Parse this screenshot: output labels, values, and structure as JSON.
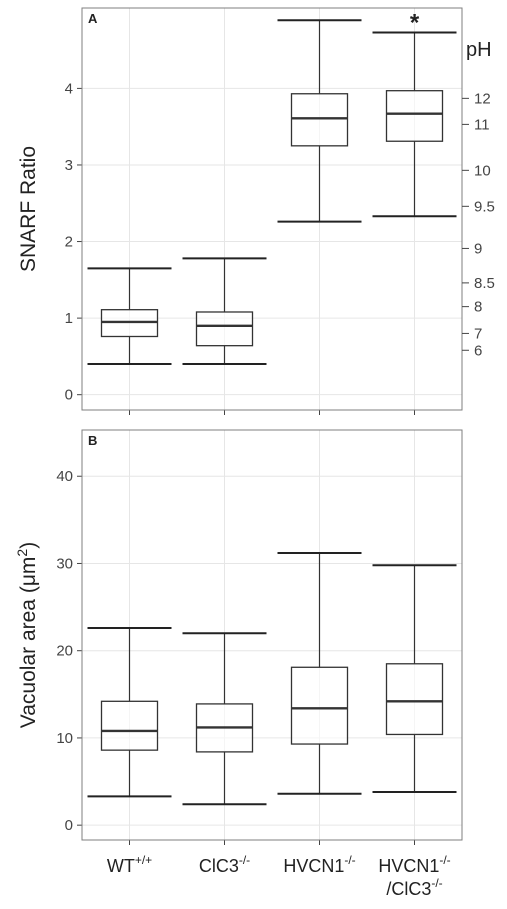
{
  "chart_data": [
    {
      "type": "box",
      "panel_label": "A",
      "ylabel": "SNARF Ratio",
      "ylim": [
        -0.2,
        5.05
      ],
      "yticks": [
        0,
        1,
        2,
        3,
        4
      ],
      "grid": true,
      "boxes": [
        {
          "low": 0.4,
          "q1": 0.76,
          "median": 0.95,
          "q3": 1.11,
          "high": 1.65
        },
        {
          "low": 0.4,
          "q1": 0.64,
          "median": 0.9,
          "q3": 1.08,
          "high": 1.78
        },
        {
          "low": 2.26,
          "q1": 3.25,
          "median": 3.61,
          "q3": 3.93,
          "high": 4.89
        },
        {
          "low": 2.33,
          "q1": 3.31,
          "median": 3.67,
          "q3": 3.97,
          "high": 4.73
        }
      ],
      "annotations": [
        {
          "text": "*",
          "box": 3
        }
      ],
      "y2label": "pH",
      "ph_calibration": {
        "ph": [
          12,
          11,
          10,
          9.5,
          9,
          8.5,
          8,
          7,
          6
        ],
        "ratio": [
          3.87,
          3.53,
          2.93,
          2.46,
          1.91,
          1.46,
          1.15,
          0.8,
          0.58
        ]
      }
    },
    {
      "type": "box",
      "panel_label": "B",
      "ylabel": {
        "text": "Vacuolar area (μm",
        "sup": "2",
        "tail": ")"
      },
      "ylim": [
        -1.7,
        45.3
      ],
      "yticks": [
        0,
        10,
        20,
        30,
        40
      ],
      "grid": true,
      "categories": [
        [
          {
            "text": "WT",
            "sup": "+/+"
          }
        ],
        [
          {
            "text": "ClC3",
            "sup": "-/-"
          }
        ],
        [
          {
            "text": "HVCN1",
            "sup": "-/-"
          }
        ],
        [
          {
            "text": "HVCN1",
            "sup": "-/-"
          },
          {
            "text": "/ClC3",
            "sup": "-/-"
          }
        ]
      ],
      "boxes": [
        {
          "low": 3.3,
          "q1": 8.6,
          "median": 10.8,
          "q3": 14.2,
          "high": 22.6
        },
        {
          "low": 2.4,
          "q1": 8.4,
          "median": 11.2,
          "q3": 13.9,
          "high": 22.0
        },
        {
          "low": 3.6,
          "q1": 9.3,
          "median": 13.4,
          "q3": 18.1,
          "high": 31.2
        },
        {
          "low": 3.8,
          "q1": 10.4,
          "median": 14.2,
          "q3": 18.5,
          "high": 29.8
        }
      ]
    }
  ]
}
